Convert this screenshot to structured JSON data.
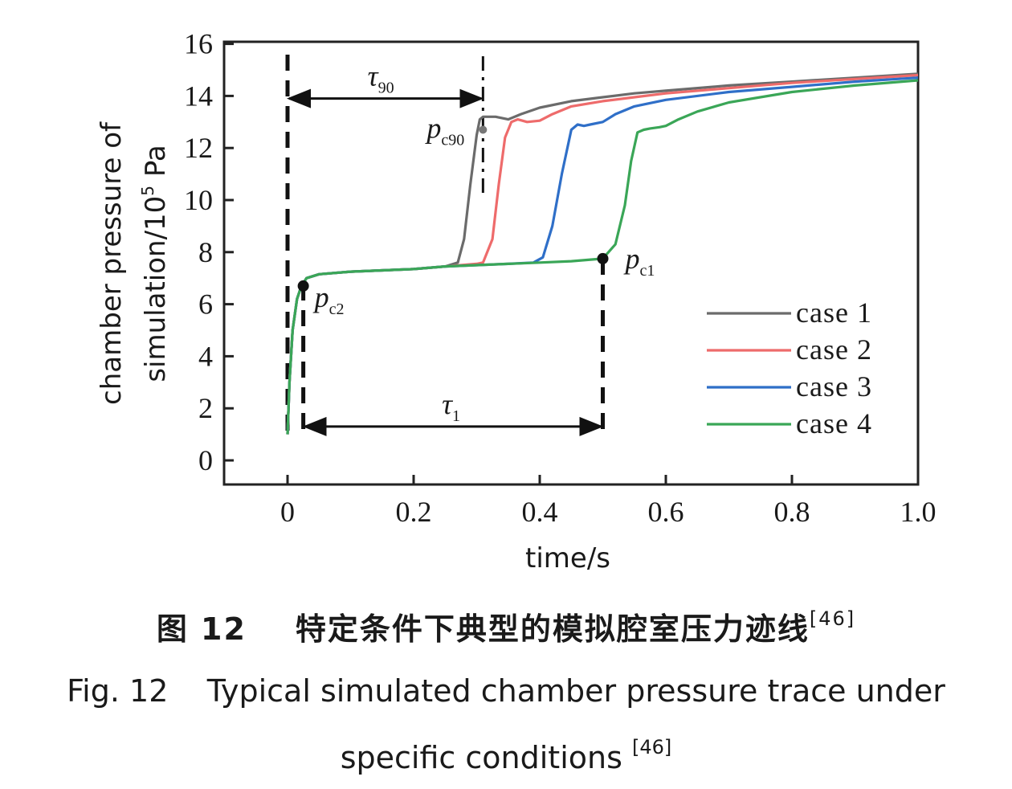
{
  "chart_data": {
    "type": "line",
    "xlabel": "time/s",
    "ylabel_line1": "chamber pressure of",
    "ylabel_line2_prefix": "simulation/10",
    "ylabel_line2_sup": "5",
    "ylabel_line2_suffix": " Pa",
    "xlim": [
      -0.1,
      1.0
    ],
    "ylim": [
      -1,
      16
    ],
    "x_ticks": [
      0,
      0.2,
      0.4,
      0.6,
      0.8,
      1.0
    ],
    "x_tick_labels": [
      "0",
      "0.2",
      "0.4",
      "0.6",
      "0.8",
      "1.0"
    ],
    "y_ticks": [
      0,
      2,
      4,
      6,
      8,
      10,
      12,
      14,
      16
    ],
    "y_tick_labels": [
      "0",
      "2",
      "4",
      "6",
      "8",
      "10",
      "12",
      "14",
      "16"
    ],
    "grid": false,
    "legend_position": "lower-right",
    "series": [
      {
        "name": "case 1",
        "color": "#6b6b6b",
        "x": [
          0.0,
          0.003,
          0.008,
          0.015,
          0.022,
          0.03,
          0.05,
          0.1,
          0.15,
          0.2,
          0.25,
          0.27,
          0.28,
          0.29,
          0.3,
          0.305,
          0.31,
          0.33,
          0.35,
          0.37,
          0.4,
          0.45,
          0.5,
          0.55,
          0.6,
          0.7,
          0.8,
          0.9,
          1.0
        ],
        "y": [
          1.0,
          3.0,
          5.0,
          6.2,
          6.7,
          7.0,
          7.15,
          7.25,
          7.3,
          7.35,
          7.45,
          7.6,
          8.5,
          10.6,
          12.5,
          13.1,
          13.2,
          13.2,
          13.1,
          13.3,
          13.55,
          13.8,
          13.95,
          14.1,
          14.2,
          14.4,
          14.55,
          14.7,
          14.85
        ]
      },
      {
        "name": "case 2",
        "color": "#ee6b6b",
        "x": [
          0.0,
          0.003,
          0.008,
          0.015,
          0.022,
          0.03,
          0.05,
          0.1,
          0.15,
          0.2,
          0.25,
          0.3,
          0.31,
          0.325,
          0.335,
          0.345,
          0.355,
          0.365,
          0.38,
          0.4,
          0.42,
          0.45,
          0.5,
          0.55,
          0.6,
          0.7,
          0.8,
          0.9,
          1.0
        ],
        "y": [
          1.0,
          3.0,
          5.0,
          6.2,
          6.7,
          7.0,
          7.15,
          7.25,
          7.3,
          7.35,
          7.45,
          7.55,
          7.6,
          8.5,
          10.6,
          12.4,
          13.0,
          13.1,
          13.0,
          13.05,
          13.3,
          13.6,
          13.8,
          13.95,
          14.1,
          14.3,
          14.5,
          14.65,
          14.8
        ]
      },
      {
        "name": "case 3",
        "color": "#2f6fc8",
        "x": [
          0.0,
          0.003,
          0.008,
          0.015,
          0.022,
          0.03,
          0.05,
          0.1,
          0.15,
          0.2,
          0.25,
          0.3,
          0.35,
          0.39,
          0.405,
          0.42,
          0.435,
          0.45,
          0.46,
          0.47,
          0.48,
          0.5,
          0.52,
          0.55,
          0.6,
          0.7,
          0.8,
          0.9,
          1.0
        ],
        "y": [
          1.0,
          3.0,
          5.0,
          6.2,
          6.7,
          7.0,
          7.15,
          7.25,
          7.3,
          7.35,
          7.45,
          7.5,
          7.55,
          7.6,
          7.8,
          9.0,
          11.0,
          12.7,
          12.9,
          12.85,
          12.9,
          13.0,
          13.3,
          13.6,
          13.85,
          14.15,
          14.35,
          14.55,
          14.7
        ]
      },
      {
        "name": "case 4",
        "color": "#3aa657",
        "x": [
          0.0,
          0.003,
          0.008,
          0.015,
          0.022,
          0.03,
          0.05,
          0.1,
          0.15,
          0.2,
          0.25,
          0.3,
          0.35,
          0.4,
          0.45,
          0.5,
          0.52,
          0.535,
          0.545,
          0.555,
          0.565,
          0.575,
          0.59,
          0.6,
          0.62,
          0.65,
          0.7,
          0.8,
          0.9,
          1.0
        ],
        "y": [
          1.0,
          3.0,
          5.0,
          6.2,
          6.7,
          7.0,
          7.15,
          7.25,
          7.3,
          7.35,
          7.45,
          7.5,
          7.55,
          7.6,
          7.65,
          7.75,
          8.3,
          9.8,
          11.5,
          12.6,
          12.7,
          12.75,
          12.8,
          12.85,
          13.1,
          13.4,
          13.75,
          14.15,
          14.4,
          14.6
        ]
      }
    ],
    "annotations": {
      "dashed_lines_x": [
        0,
        0.025,
        0.31,
        0.5
      ],
      "tau90": {
        "label": "τ",
        "sub": "90",
        "x_from": 0,
        "x_to": 0.31,
        "y": 13.9
      },
      "tau1": {
        "label": "τ",
        "sub": "1",
        "x_from": 0.025,
        "x_to": 0.5,
        "y": 1.3
      },
      "points": [
        {
          "label": "p",
          "sub": "c2",
          "x": 0.025,
          "y": 6.7,
          "color": "#111111"
        },
        {
          "label": "p",
          "sub": "c1",
          "x": 0.5,
          "y": 7.75,
          "color": "#111111"
        },
        {
          "label": "p",
          "sub": "c90",
          "x": 0.31,
          "y": 12.7,
          "color": "#777777"
        }
      ]
    }
  },
  "caption": {
    "cn_figure_label": "图 12",
    "cn_text": "特定条件下典型的模拟腔室压力迹线",
    "ref": "[46]",
    "en_line1": "Fig. 12    Typical simulated chamber pressure trace under",
    "en_line2": "specific conditions"
  }
}
